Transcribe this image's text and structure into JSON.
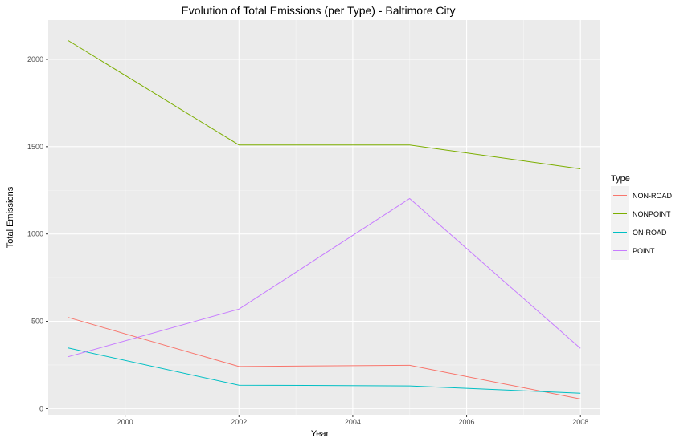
{
  "chart_data": {
    "type": "line",
    "title": "Evolution of Total Emissions (per Type) - Baltimore City",
    "xlabel": "Year",
    "ylabel": "Total Emissions",
    "x": [
      1999,
      2002,
      2005,
      2008
    ],
    "xlim": [
      1998.65,
      2008.35
    ],
    "ylim": [
      -35,
      2225
    ],
    "x_ticks": [
      "2000",
      "2002",
      "2004",
      "2006",
      "2008"
    ],
    "y_ticks": [
      "0",
      "500",
      "1000",
      "1500",
      "2000"
    ],
    "grid": true,
    "legend_position": "right",
    "legend_title": "Type",
    "series": [
      {
        "name": "NON-ROAD",
        "color": "#F8766D",
        "values": [
          522,
          241,
          248,
          55
        ]
      },
      {
        "name": "NONPOINT",
        "color": "#7CAE00",
        "values": [
          2108,
          1510,
          1510,
          1373
        ]
      },
      {
        "name": "ON-ROAD",
        "color": "#00BFC4",
        "values": [
          347,
          134,
          130,
          88
        ]
      },
      {
        "name": "POINT",
        "color": "#C77CFF",
        "values": [
          297,
          570,
          1203,
          345
        ]
      }
    ]
  }
}
